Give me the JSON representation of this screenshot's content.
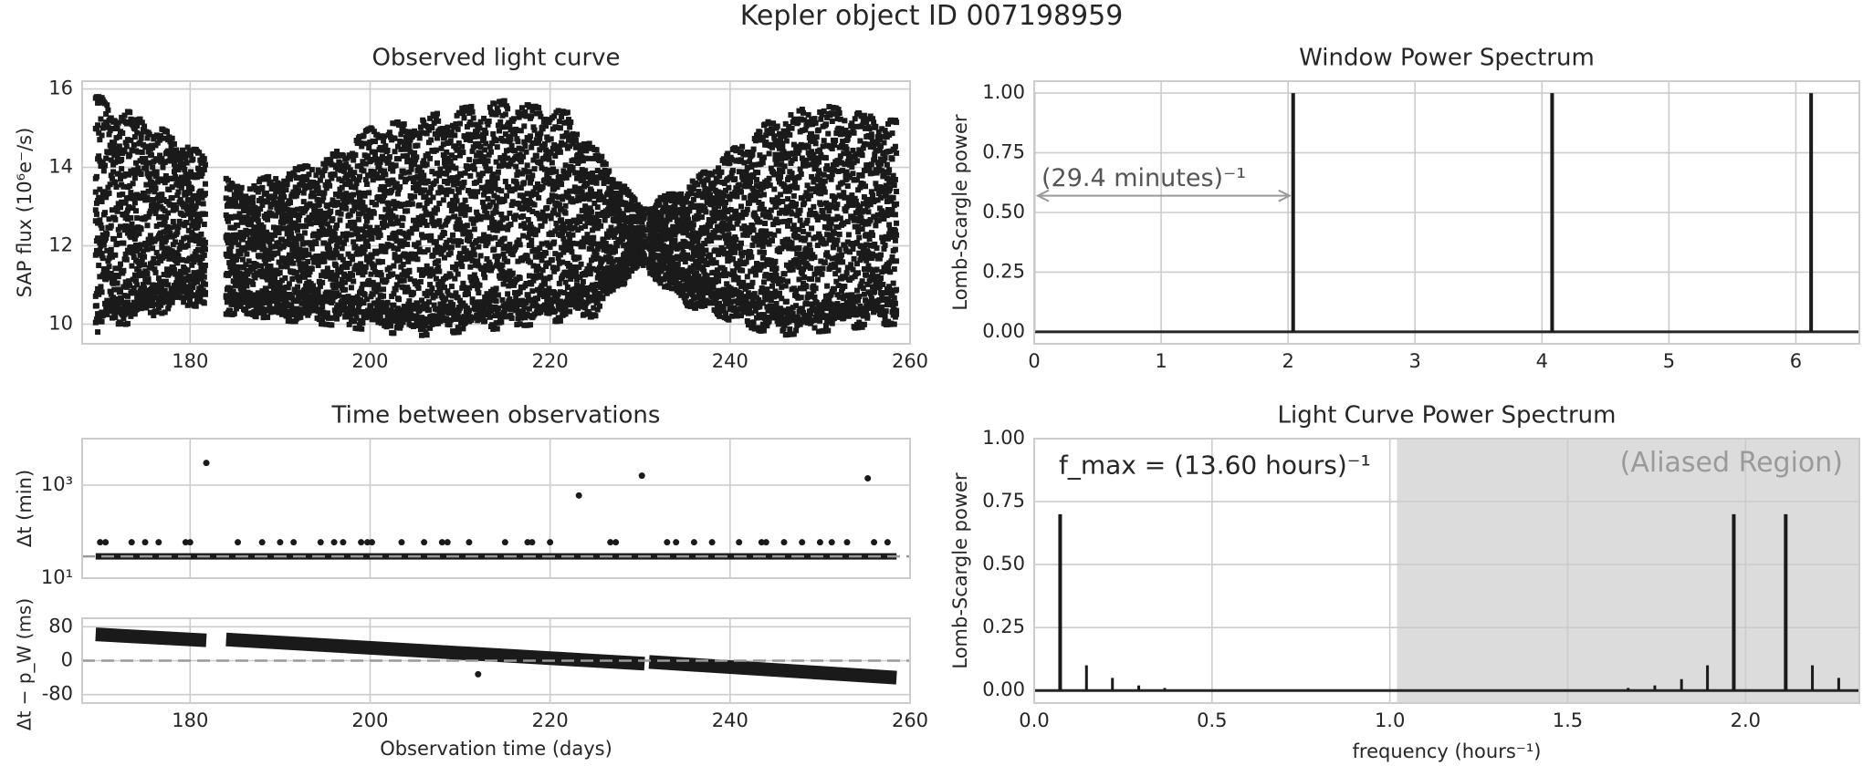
{
  "figure": {
    "suptitle": "Kepler object ID 007198959"
  },
  "chart_data": [
    {
      "id": "light_curve",
      "type": "scatter",
      "title": "Observed light curve",
      "xlabel": "",
      "ylabel": "SAP flux (10⁶e⁻/s)",
      "xlim": [
        168,
        260
      ],
      "ylim": [
        9.5,
        16.2
      ],
      "xticks": [
        180,
        200,
        220,
        240,
        260
      ],
      "yticks": [
        10,
        12,
        14,
        16
      ],
      "grid": true,
      "description_values": {
        "segments_days": [
          [
            169.5,
            181.8
          ],
          [
            184.0,
            230.5
          ],
          [
            231.0,
            258.5
          ]
        ],
        "envelope_upper": [
          [
            170,
            15.8
          ],
          [
            180,
            14.6
          ],
          [
            185,
            13.5
          ],
          [
            195,
            14.2
          ],
          [
            200,
            15.0
          ],
          [
            210,
            15.5
          ],
          [
            215,
            15.7
          ],
          [
            222,
            15.4
          ],
          [
            230,
            13.0
          ],
          [
            235,
            13.5
          ],
          [
            245,
            15.3
          ],
          [
            250,
            15.6
          ],
          [
            258,
            15.2
          ]
        ],
        "envelope_lower": [
          [
            170,
            9.8
          ],
          [
            180,
            10.5
          ],
          [
            185,
            10.2
          ],
          [
            195,
            10.0
          ],
          [
            205,
            9.7
          ],
          [
            215,
            9.9
          ],
          [
            225,
            10.2
          ],
          [
            230,
            11.5
          ],
          [
            235,
            10.5
          ],
          [
            245,
            9.7
          ],
          [
            258,
            10.0
          ]
        ]
      }
    },
    {
      "id": "window_power",
      "type": "line",
      "title": "Window Power Spectrum",
      "xlabel": "",
      "ylabel": "Lomb-Scargle power",
      "xlim": [
        0,
        6.5
      ],
      "ylim": [
        -0.05,
        1.05
      ],
      "xticks": [
        0,
        1,
        2,
        3,
        4,
        5,
        6
      ],
      "yticks": [
        "0.00",
        "0.25",
        "0.50",
        "0.75",
        "1.00"
      ],
      "grid": true,
      "peaks": [
        {
          "x": 2.04,
          "y": 1.0
        },
        {
          "x": 4.08,
          "y": 1.0
        },
        {
          "x": 6.12,
          "y": 1.0
        }
      ],
      "annotation": {
        "text": "(29.4 minutes)⁻¹",
        "x_from": 0,
        "x_to": 2.04,
        "y": 0.57
      }
    },
    {
      "id": "time_between",
      "type": "scatter",
      "title": "Time between observations",
      "xlabel": "",
      "ylabel": "Δt (min)",
      "xlim": [
        168,
        260
      ],
      "yscale": "log",
      "ylim": [
        10,
        10000
      ],
      "xticks": [
        180,
        200,
        220,
        240,
        260
      ],
      "ytick_labels": [
        "10¹",
        "10³"
      ],
      "grid": true,
      "baseline_min": 29.4,
      "points": [
        {
          "x": 170.0,
          "y": 59
        },
        {
          "x": 170.6,
          "y": 59
        },
        {
          "x": 173.5,
          "y": 59
        },
        {
          "x": 175.0,
          "y": 59
        },
        {
          "x": 176.5,
          "y": 59
        },
        {
          "x": 179.5,
          "y": 59
        },
        {
          "x": 180.0,
          "y": 59
        },
        {
          "x": 181.8,
          "y": 3000
        },
        {
          "x": 185.3,
          "y": 59
        },
        {
          "x": 188.0,
          "y": 59
        },
        {
          "x": 190.0,
          "y": 59
        },
        {
          "x": 191.5,
          "y": 59
        },
        {
          "x": 194.5,
          "y": 59
        },
        {
          "x": 196.0,
          "y": 59
        },
        {
          "x": 197.0,
          "y": 59
        },
        {
          "x": 199.0,
          "y": 59
        },
        {
          "x": 199.7,
          "y": 59
        },
        {
          "x": 200.2,
          "y": 59
        },
        {
          "x": 203.5,
          "y": 59
        },
        {
          "x": 206.0,
          "y": 59
        },
        {
          "x": 208.0,
          "y": 59
        },
        {
          "x": 208.6,
          "y": 59
        },
        {
          "x": 211.0,
          "y": 59
        },
        {
          "x": 215.0,
          "y": 59
        },
        {
          "x": 217.5,
          "y": 59
        },
        {
          "x": 218.0,
          "y": 59
        },
        {
          "x": 220.0,
          "y": 59
        },
        {
          "x": 223.2,
          "y": 600
        },
        {
          "x": 226.7,
          "y": 59
        },
        {
          "x": 227.3,
          "y": 59
        },
        {
          "x": 230.2,
          "y": 1600
        },
        {
          "x": 233.0,
          "y": 59
        },
        {
          "x": 234.0,
          "y": 59
        },
        {
          "x": 236.0,
          "y": 59
        },
        {
          "x": 238.0,
          "y": 59
        },
        {
          "x": 241.0,
          "y": 59
        },
        {
          "x": 243.5,
          "y": 59
        },
        {
          "x": 244.0,
          "y": 59
        },
        {
          "x": 246.0,
          "y": 59
        },
        {
          "x": 248.0,
          "y": 59
        },
        {
          "x": 250.0,
          "y": 59
        },
        {
          "x": 251.3,
          "y": 59
        },
        {
          "x": 253.0,
          "y": 59
        },
        {
          "x": 255.3,
          "y": 1400
        },
        {
          "x": 256.0,
          "y": 59
        },
        {
          "x": 257.5,
          "y": 59
        }
      ]
    },
    {
      "id": "dt_residual",
      "type": "scatter",
      "title": "",
      "xlabel": "Observation time (days)",
      "ylabel": "Δt − p_W (ms)",
      "xlim": [
        168,
        260
      ],
      "ylim": [
        -100,
        100
      ],
      "xticks": [
        180,
        200,
        220,
        240,
        260
      ],
      "yticks": [
        -80,
        0,
        80
      ],
      "grid": true,
      "trend_segments": [
        {
          "x": [
            169.5,
            181.8
          ],
          "y": [
            62,
            48
          ]
        },
        {
          "x": [
            184.0,
            230.5
          ],
          "y": [
            50,
            -7
          ]
        },
        {
          "x": [
            231.0,
            258.5
          ],
          "y": [
            -3,
            -40
          ]
        }
      ],
      "outliers": [
        {
          "x": 212.0,
          "y": -32
        }
      ]
    },
    {
      "id": "light_curve_power",
      "type": "line",
      "title": "Light Curve Power Spectrum",
      "xlabel": "frequency (hours⁻¹)",
      "ylabel": "Lomb-Scargle power",
      "xlim": [
        0,
        2.32
      ],
      "ylim": [
        -0.05,
        1.0
      ],
      "xticks": [
        "0.0",
        "0.5",
        "1.0",
        "1.5",
        "2.0"
      ],
      "yticks": [
        "0.00",
        "0.25",
        "0.50",
        "0.75",
        "1.00"
      ],
      "grid": true,
      "aliased_region": {
        "from": 1.02,
        "to": 2.32,
        "label": "(Aliased Region)"
      },
      "annotation": "f_max = (13.60 hours)⁻¹",
      "peaks": [
        {
          "x": 0.073,
          "y": 0.7
        },
        {
          "x": 0.147,
          "y": 0.1
        },
        {
          "x": 0.22,
          "y": 0.05
        },
        {
          "x": 0.294,
          "y": 0.02
        },
        {
          "x": 0.367,
          "y": 0.01
        },
        {
          "x": 1.67,
          "y": 0.01
        },
        {
          "x": 1.745,
          "y": 0.02
        },
        {
          "x": 1.82,
          "y": 0.045
        },
        {
          "x": 1.893,
          "y": 0.1
        },
        {
          "x": 1.967,
          "y": 0.7
        },
        {
          "x": 2.113,
          "y": 0.7
        },
        {
          "x": 2.188,
          "y": 0.1
        },
        {
          "x": 2.262,
          "y": 0.05
        }
      ]
    }
  ]
}
